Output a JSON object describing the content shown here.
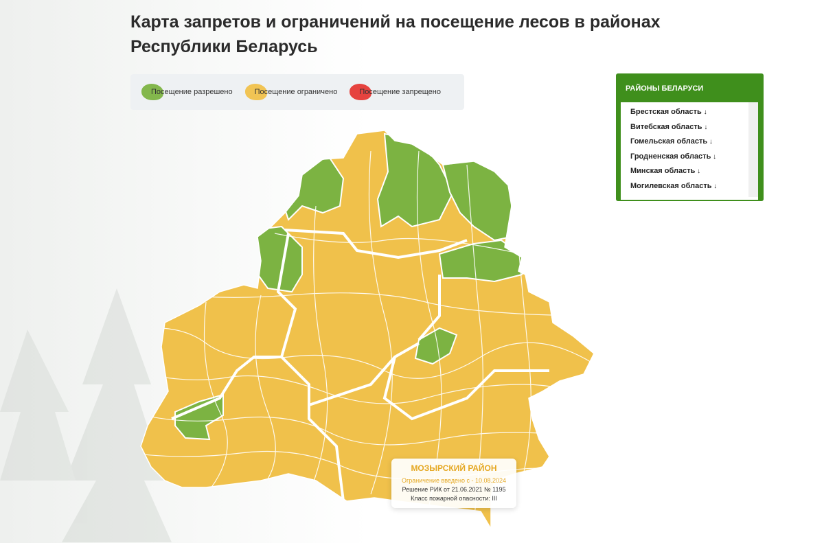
{
  "header": {
    "title": "Карта запретов и ограничений на посещение лесов в районах Республики Беларусь"
  },
  "legend": [
    {
      "label": "Посещение разрешено",
      "color": "#7cb342"
    },
    {
      "label": "Посещение ограничено",
      "color": "#f0c14b"
    },
    {
      "label": "Посещение запрещено",
      "color": "#e53935"
    }
  ],
  "sidebar": {
    "title": "РАЙОНЫ БЕЛАРУСИ",
    "items": [
      "Брестская область",
      "Витебская область",
      "Гомельская область",
      "Гродненская область",
      "Минская область",
      "Могилевская область"
    ]
  },
  "tooltip": {
    "title": "МОЗЫРСКИЙ РАЙОН",
    "line1": "Ограничение введено с - 10.08.2024",
    "line2": "Решение РИК от 21.06.2021 № 1195",
    "line3": "Класс пожарной опасности: III"
  }
}
